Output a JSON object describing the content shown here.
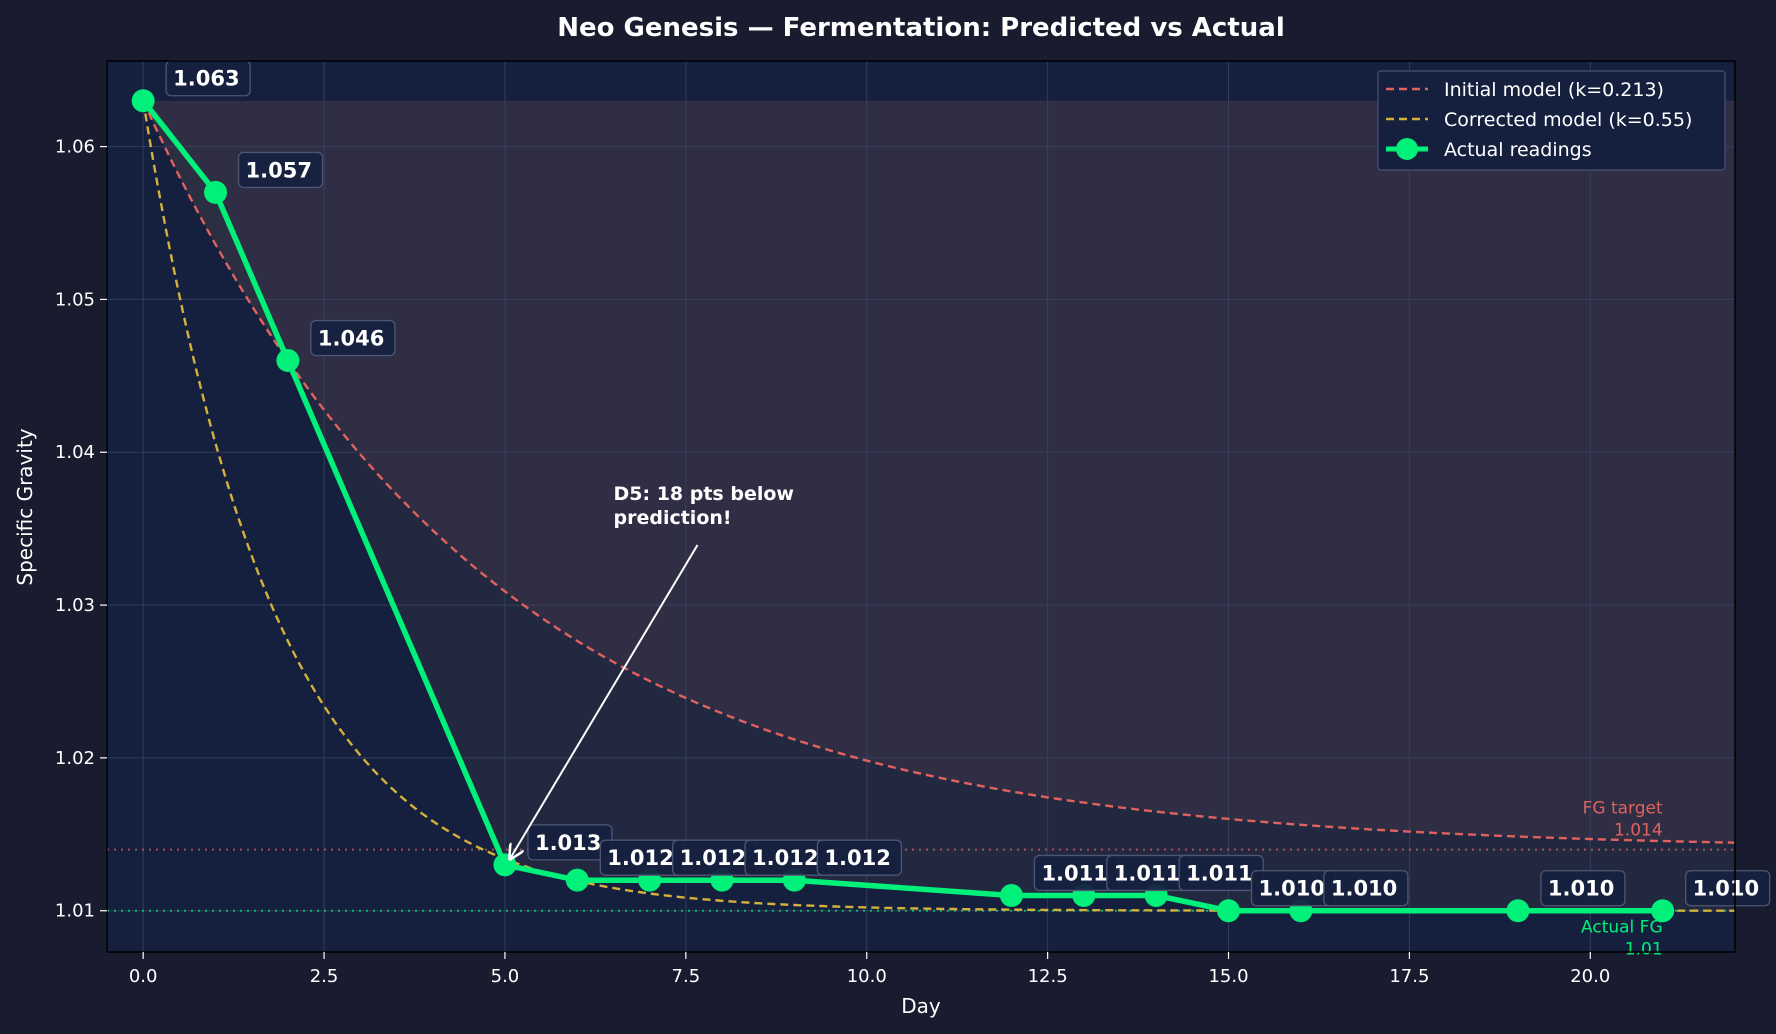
{
  "colors": {
    "background": "#191b2e",
    "plot_bg": "#15203f",
    "initial": "#e0625f",
    "corrected": "#d4b13a",
    "actual": "#00f07a",
    "text": "#ffffff",
    "grid": "#3c4564",
    "label_box": "#15203f"
  },
  "chart_data": {
    "type": "line",
    "title": "Neo Genesis — Fermentation: Predicted vs Actual",
    "xlabel": "Day",
    "ylabel": "Specific Gravity",
    "xlim": [
      -0.5,
      22
    ],
    "ylim": [
      1.0073,
      1.0656
    ],
    "x_ticks": [
      0,
      2.5,
      5,
      7.5,
      10,
      12.5,
      15,
      17.5,
      20
    ],
    "x_tick_labels": [
      "0.0",
      "2.5",
      "5.0",
      "7.5",
      "10.0",
      "12.5",
      "15.0",
      "17.5",
      "20.0"
    ],
    "y_ticks": [
      1.01,
      1.02,
      1.03,
      1.04,
      1.05,
      1.06
    ],
    "y_tick_labels": [
      "1.01",
      "1.02",
      "1.03",
      "1.04",
      "1.05",
      "1.06"
    ],
    "grid": true,
    "legend_position": "top-right",
    "og": 1.063,
    "series": [
      {
        "name": "Initial model (k=0.213)",
        "style": "dashed",
        "k": 0.213,
        "fg": 1.014
      },
      {
        "name": "Corrected model (k=0.55)",
        "style": "dashed",
        "k": 0.55,
        "fg": 1.01
      },
      {
        "name": "Actual readings",
        "style": "line-marker",
        "x": [
          0,
          1,
          2,
          5,
          6,
          7,
          8,
          9,
          12,
          13,
          14,
          15,
          16,
          19,
          21
        ],
        "y": [
          1.063,
          1.057,
          1.046,
          1.013,
          1.012,
          1.012,
          1.012,
          1.012,
          1.011,
          1.011,
          1.011,
          1.01,
          1.01,
          1.01,
          1.01
        ],
        "labels": [
          "1.063",
          "1.057",
          "1.046",
          "1.013",
          "1.012",
          "1.012",
          "1.012",
          "1.012",
          "1.011",
          "1.011",
          "1.011",
          "1.010",
          "1.010",
          "1.010",
          "1.010"
        ]
      }
    ],
    "reference_lines": [
      {
        "y": 1.014,
        "label_line1": "FG target",
        "label_line2": "1.014",
        "color": "#e0625f"
      },
      {
        "y": 1.01,
        "label_line1": "Actual FG",
        "label_line2": "1.01",
        "color": "#00f07a"
      }
    ],
    "annotation": {
      "text_line1": "D5: 18 pts below",
      "text_line2": "prediction!",
      "point_x": 5,
      "point_y": 1.013,
      "text_x": 6.5,
      "text_y": 1.0355
    }
  }
}
